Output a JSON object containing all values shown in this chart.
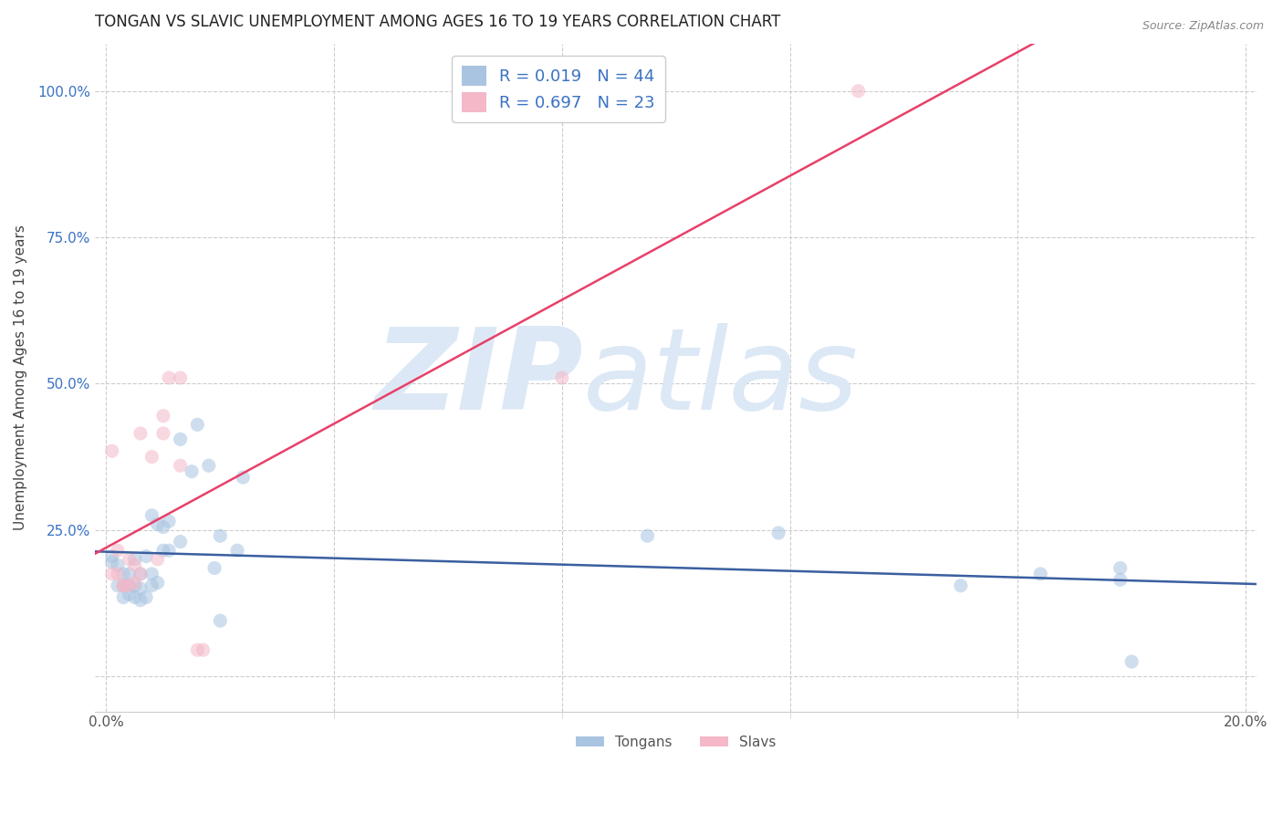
{
  "title": "TONGAN VS SLAVIC UNEMPLOYMENT AMONG AGES 16 TO 19 YEARS CORRELATION CHART",
  "source": "Source: ZipAtlas.com",
  "ylabel": "Unemployment Among Ages 16 to 19 years",
  "xlim": [
    -0.002,
    0.202
  ],
  "ylim": [
    -0.06,
    1.08
  ],
  "xticks": [
    0.0,
    0.04,
    0.08,
    0.12,
    0.16,
    0.2
  ],
  "xticklabels": [
    "0.0%",
    "",
    "",
    "",
    "",
    "20.0%"
  ],
  "yticks": [
    0.0,
    0.25,
    0.5,
    0.75,
    1.0
  ],
  "yticklabels": [
    "",
    "25.0%",
    "50.0%",
    "75.0%",
    "100.0%"
  ],
  "tongan_color": "#a8c4e0",
  "slavic_color": "#f4b8c8",
  "tongan_line_color": "#3a5fa0",
  "slavic_line_color": "#e8406a",
  "legend_text_color": "#3a72c4",
  "watermark_zip": "ZIP",
  "watermark_atlas": "atlas",
  "watermark_color": "#dce8f5",
  "grid_color": "#cccccc",
  "R_tongan": 0.019,
  "N_tongan": 44,
  "R_slavic": 0.697,
  "N_slavic": 23,
  "tongan_x": [
    0.001,
    0.001,
    0.002,
    0.002,
    0.003,
    0.003,
    0.003,
    0.004,
    0.004,
    0.004,
    0.005,
    0.005,
    0.005,
    0.006,
    0.006,
    0.006,
    0.007,
    0.007,
    0.008,
    0.008,
    0.008,
    0.009,
    0.009,
    0.01,
    0.01,
    0.011,
    0.011,
    0.013,
    0.013,
    0.015,
    0.016,
    0.018,
    0.019,
    0.02,
    0.02,
    0.023,
    0.024,
    0.095,
    0.118,
    0.15,
    0.164,
    0.178,
    0.178,
    0.18
  ],
  "tongan_y": [
    0.195,
    0.205,
    0.155,
    0.19,
    0.135,
    0.155,
    0.175,
    0.14,
    0.155,
    0.175,
    0.135,
    0.155,
    0.2,
    0.13,
    0.15,
    0.175,
    0.135,
    0.205,
    0.155,
    0.175,
    0.275,
    0.16,
    0.26,
    0.215,
    0.255,
    0.215,
    0.265,
    0.23,
    0.405,
    0.35,
    0.43,
    0.36,
    0.185,
    0.095,
    0.24,
    0.215,
    0.34,
    0.24,
    0.245,
    0.155,
    0.175,
    0.165,
    0.185,
    0.025
  ],
  "slavic_x": [
    0.001,
    0.001,
    0.002,
    0.002,
    0.003,
    0.003,
    0.004,
    0.004,
    0.005,
    0.005,
    0.006,
    0.006,
    0.008,
    0.009,
    0.01,
    0.01,
    0.011,
    0.013,
    0.013,
    0.016,
    0.017,
    0.08,
    0.132
  ],
  "slavic_y": [
    0.175,
    0.385,
    0.175,
    0.215,
    0.155,
    0.155,
    0.155,
    0.2,
    0.16,
    0.19,
    0.175,
    0.415,
    0.375,
    0.2,
    0.415,
    0.445,
    0.51,
    0.36,
    0.51,
    0.045,
    0.045,
    0.51,
    1.0
  ],
  "title_fontsize": 12,
  "axis_label_fontsize": 11,
  "tick_fontsize": 11,
  "legend_fontsize": 13,
  "scatter_size": 120,
  "scatter_alpha": 0.55
}
